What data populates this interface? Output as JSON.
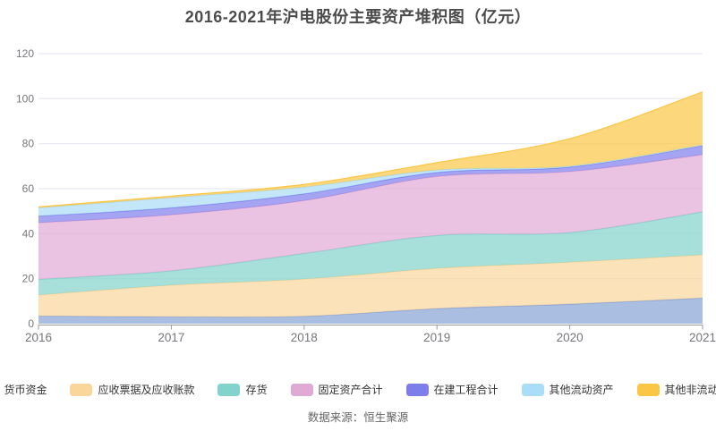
{
  "page": {
    "background": "#ffffff",
    "title_color": "#4c4c4c",
    "axis_label_color": "#76767c",
    "gridline_color": "#e3e6f0",
    "axis_line_color": "#97999f",
    "legend_text_color": "#333333",
    "source_text_color": "#666666"
  },
  "chart_data": {
    "type": "area",
    "stacked": true,
    "smooth": true,
    "title": "2016-2021年沪电股份主要资产堆积图（亿元）",
    "source_note": "数据来源：恒生聚源",
    "categories": [
      "2016",
      "2017",
      "2018",
      "2019",
      "2020",
      "2021"
    ],
    "xlabel": "",
    "ylabel": "",
    "ylim": [
      0,
      120
    ],
    "y_ticks": [
      0,
      20,
      40,
      60,
      80,
      100,
      120
    ],
    "grid": true,
    "legend_position": "bottom",
    "fill_opacity": 0.7,
    "series": [
      {
        "name": "货币资金",
        "color": "#86a2d4",
        "values": [
          3.4,
          3.1,
          3.3,
          6.7,
          8.7,
          11.4
        ]
      },
      {
        "name": "应收票据及应收账款",
        "color": "#fbd69b",
        "values": [
          9.3,
          14.0,
          16.5,
          17.9,
          18.6,
          19.2
        ]
      },
      {
        "name": "存货",
        "color": "#82d3cb",
        "values": [
          7.0,
          6.4,
          11.4,
          14.6,
          13.2,
          19.1
        ]
      },
      {
        "name": "固定资产合计",
        "color": "#e0aad4",
        "values": [
          25.2,
          24.9,
          23.5,
          26.2,
          27.1,
          25.4
        ]
      },
      {
        "name": "在建工程合计",
        "color": "#7d7dec",
        "values": [
          2.9,
          3.1,
          3.0,
          1.8,
          2.0,
          4.0
        ]
      },
      {
        "name": "其他流动资产",
        "color": "#aaddf7",
        "values": [
          3.7,
          4.5,
          3.0,
          1.1,
          0.4,
          0.3
        ]
      },
      {
        "name": "其他非流动资产",
        "color": "#fcc645",
        "values": [
          0.4,
          0.7,
          1.2,
          3.3,
          12.2,
          23.6
        ]
      }
    ],
    "totals": [
      51.9,
      56.7,
      61.9,
      71.6,
      82.2,
      103.0
    ]
  }
}
